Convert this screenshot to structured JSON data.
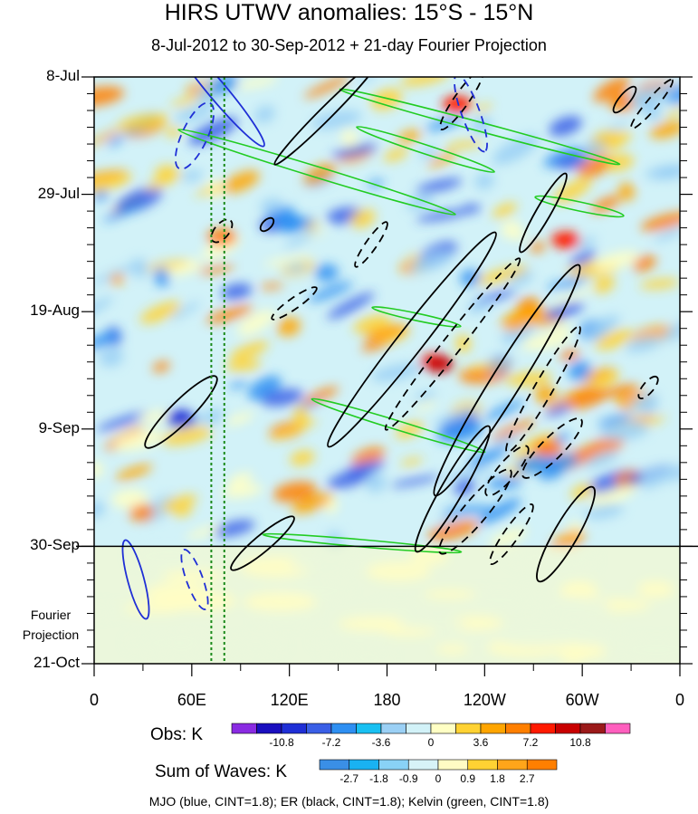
{
  "title": "HIRS UTWV anomalies: 15°S - 15°N",
  "subtitle": "8-Jul-2012 to 30-Sep-2012 + 21-day Fourier Projection",
  "chart_data": {
    "type": "heatmap",
    "title": "HIRS UTWV anomalies: 15°S - 15°N",
    "subtitle": "8-Jul-2012 to 30-Sep-2012 + 21-day Fourier Projection",
    "x_ticks": [
      "0",
      "60E",
      "120E",
      "180",
      "120W",
      "60W",
      "0"
    ],
    "x_range_deg_east": [
      0,
      360
    ],
    "y_ticks": [
      "8-Jul",
      "29-Jul",
      "19-Aug",
      "9-Sep",
      "30-Sep",
      "21-Oct"
    ],
    "y_range_days_since_8jul": [
      0,
      105
    ],
    "observation_end": "30-Sep",
    "projection_label": [
      "Fourier",
      "Projection"
    ],
    "reference_longitudes_deg_east": [
      72,
      80
    ],
    "obs_colorbar": {
      "label": "Obs: K",
      "tick_labels": [
        "-10.8",
        "-7.2",
        "-3.6",
        "0",
        "3.6",
        "7.2",
        "10.8"
      ],
      "colors": [
        "#8a2be2",
        "#1a0fbf",
        "#1f2fd6",
        "#3a5fe6",
        "#2e8ff2",
        "#19c0f2",
        "#9bd0f5",
        "#d2f2f8",
        "#ffffc4",
        "#ffd233",
        "#ffa500",
        "#ff7f00",
        "#ff1a00",
        "#c80000",
        "#9b1a1a",
        "#ff5fbe"
      ]
    },
    "waves_colorbar": {
      "label": "Sum of Waves: K",
      "tick_labels": [
        "-2.7",
        "-1.8",
        "-0.9",
        "0",
        "0.9",
        "1.8",
        "2.7"
      ],
      "colors": [
        "#3a8fe6",
        "#19b2f2",
        "#89d2f6",
        "#d7f3f8",
        "#fffcc4",
        "#ffd233",
        "#ffa51a",
        "#ff7f00"
      ]
    },
    "contour_legend": "MJO (blue, CINT=1.8); ER (black, CINT=1.8); Kelvin (green, CINT=1.8)",
    "wave_contours": {
      "MJO": {
        "color": "#1f2fd6",
        "cint": 1.8
      },
      "ER": {
        "color": "#000000",
        "cint": 1.8
      },
      "Kelvin": {
        "color": "#22cc22",
        "cint": 1.8
      }
    }
  }
}
